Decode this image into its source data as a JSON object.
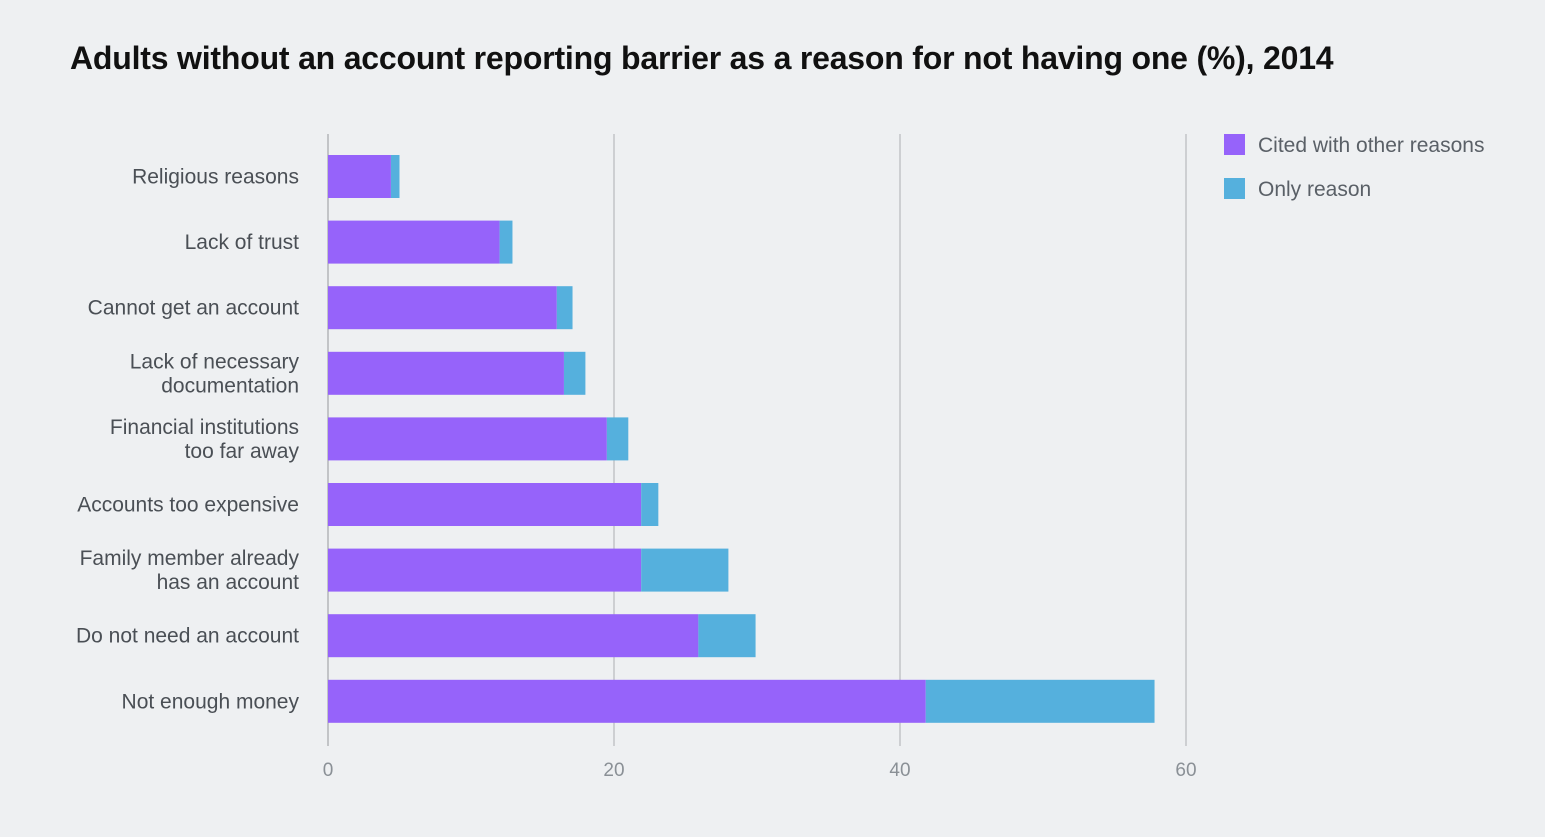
{
  "chart_data": {
    "type": "bar",
    "orientation": "horizontal",
    "stacked": true,
    "title": "Adults without an account reporting barrier as a reason for not having one (%), 2014",
    "xlabel": "",
    "ylabel": "",
    "xlim": [
      0,
      60
    ],
    "xticks": [
      0,
      20,
      40,
      60
    ],
    "grid": true,
    "legend_position": "top-right",
    "categories": [
      [
        "Religious reasons"
      ],
      [
        "Lack of trust"
      ],
      [
        "Cannot get an account"
      ],
      [
        "Lack of necessary",
        "documentation"
      ],
      [
        "Financial institutions",
        "too far away"
      ],
      [
        "Accounts too expensive"
      ],
      [
        "Family member already",
        "has an account"
      ],
      [
        "Do not need an account"
      ],
      [
        "Not enough money"
      ]
    ],
    "series": [
      {
        "name": "Cited with other reasons",
        "color": "#9663fa",
        "values": [
          4.4,
          12.0,
          16.0,
          16.5,
          19.5,
          21.9,
          21.9,
          25.9,
          41.8
        ]
      },
      {
        "name": "Only reason",
        "color": "#55b0dd",
        "values": [
          0.6,
          0.9,
          1.1,
          1.5,
          1.5,
          1.2,
          6.1,
          4.0,
          16.0
        ]
      }
    ]
  }
}
